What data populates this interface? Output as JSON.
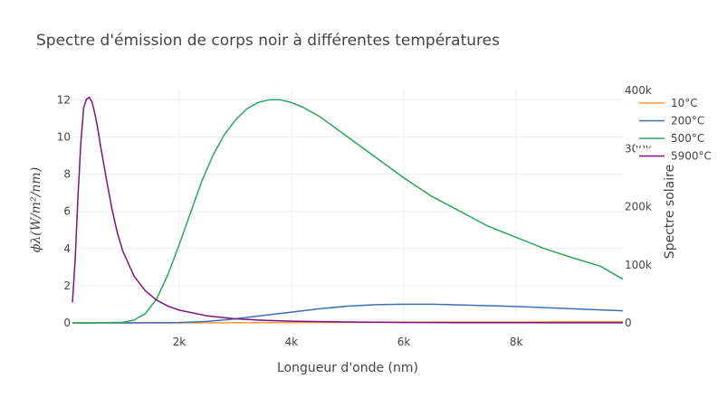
{
  "chart_data": {
    "type": "line",
    "title": "Spectre d'émission de corps noir à différentes températures",
    "xlabel": "Longueur d'onde (nm)",
    "ylabel": "ϕλ(W/m²/nm)",
    "y2label": "Spectre solaire",
    "xlim": [
      100,
      9900
    ],
    "ylim": [
      0,
      12.5
    ],
    "y2lim": [
      0,
      400000
    ],
    "x_ticks": [
      2000,
      4000,
      6000,
      8000
    ],
    "x_tick_labels": [
      "2k",
      "4k",
      "6k",
      "8k"
    ],
    "y_ticks": [
      0,
      2,
      4,
      6,
      8,
      10,
      12
    ],
    "y_tick_labels": [
      "0",
      "2",
      "4",
      "6",
      "8",
      "10",
      "12"
    ],
    "y2_ticks": [
      0,
      100000,
      200000,
      300000,
      400000
    ],
    "y2_tick_labels": [
      "0",
      "100k",
      "200k",
      "300k",
      "400k"
    ],
    "grid": true,
    "legend_position": "top-right",
    "series": [
      {
        "name": "10°C",
        "color": "#ff9a3c",
        "axis": "y",
        "x": [
          100,
          2000,
          3000,
          4000,
          5000,
          6000,
          7000,
          8000,
          9000,
          9900
        ],
        "values": [
          0,
          0,
          0.01,
          0.02,
          0.03,
          0.04,
          0.05,
          0.05,
          0.06,
          0.06
        ]
      },
      {
        "name": "200°C",
        "color": "#3b6fb6",
        "axis": "y",
        "x": [
          100,
          1000,
          2000,
          2500,
          3000,
          3500,
          4000,
          4500,
          5000,
          5500,
          6000,
          6500,
          7000,
          8000,
          9000,
          9900
        ],
        "values": [
          0,
          0,
          0.02,
          0.08,
          0.22,
          0.4,
          0.58,
          0.76,
          0.9,
          0.98,
          1.0,
          1.0,
          0.97,
          0.88,
          0.76,
          0.65
        ]
      },
      {
        "name": "500°C",
        "color": "#2ca55a",
        "axis": "y",
        "x": [
          100,
          500,
          1000,
          1200,
          1400,
          1600,
          1800,
          2000,
          2200,
          2400,
          2600,
          2800,
          3000,
          3200,
          3400,
          3600,
          3800,
          4000,
          4200,
          4500,
          5000,
          5500,
          6000,
          6500,
          7000,
          7500,
          8000,
          8500,
          9000,
          9500,
          9900
        ],
        "values": [
          0,
          0,
          0.03,
          0.15,
          0.5,
          1.3,
          2.6,
          4.2,
          5.9,
          7.6,
          9.0,
          10.1,
          10.9,
          11.5,
          11.85,
          12.0,
          12.0,
          11.85,
          11.6,
          11.1,
          10.0,
          8.9,
          7.8,
          6.8,
          6.0,
          5.2,
          4.6,
          4.0,
          3.5,
          3.05,
          2.35
        ]
      },
      {
        "name": "5900°C",
        "color": "#7d1280",
        "axis": "y2",
        "x": [
          100,
          150,
          200,
          250,
          300,
          350,
          400,
          450,
          500,
          550,
          600,
          700,
          800,
          900,
          1000,
          1200,
          1400,
          1600,
          1800,
          2000,
          2500,
          3000,
          3500,
          4000,
          5000,
          6000,
          7000,
          8000,
          9000,
          9900
        ],
        "values": [
          35000,
          110000,
          220000,
          310000,
          370000,
          385000,
          388000,
          380000,
          360000,
          335000,
          305000,
          250000,
          198000,
          155000,
          123000,
          80000,
          55000,
          39000,
          29000,
          22000,
          12000,
          7000,
          4500,
          3000,
          1500,
          800,
          500,
          300,
          200,
          150
        ]
      }
    ]
  }
}
